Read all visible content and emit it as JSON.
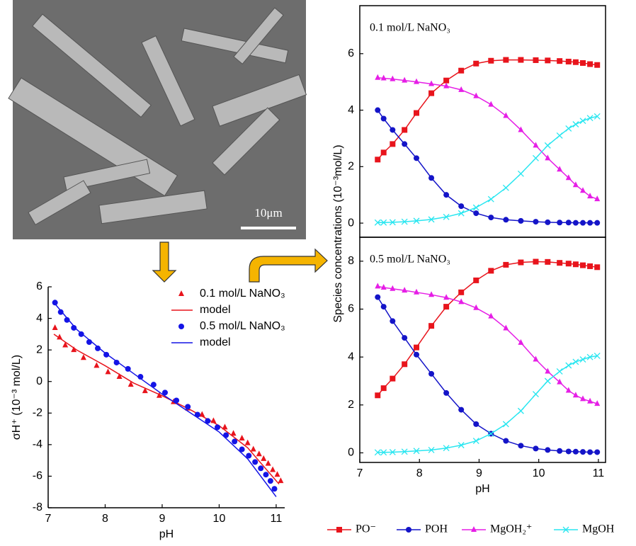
{
  "image": {
    "scale_label": "10μm"
  },
  "chart_data": [
    {
      "type": "scatter",
      "xlabel": "pH",
      "ylabel": "σH⁺ (10⁻³ mol/L)",
      "xlim": [
        7,
        11.15
      ],
      "ylim": [
        -8,
        6
      ],
      "xticks": [
        7,
        8,
        9,
        10,
        11
      ],
      "yticks": [
        -8,
        -6,
        -4,
        -2,
        0,
        2,
        4,
        6
      ],
      "legend": "upper right",
      "series": [
        {
          "name": "0.1 mol/L NaNO₃",
          "color": "#e8141c",
          "style": "markers",
          "marker": "triangle",
          "x": [
            7.12,
            7.2,
            7.3,
            7.45,
            7.62,
            7.85,
            8.05,
            8.25,
            8.45,
            8.7,
            8.95,
            9.2,
            9.45,
            9.7,
            9.9,
            10.1,
            10.25,
            10.4,
            10.5,
            10.6,
            10.7,
            10.78,
            10.86,
            10.94,
            11.02,
            11.08
          ],
          "values": [
            3.4,
            2.8,
            2.3,
            2.0,
            1.5,
            1.0,
            0.6,
            0.3,
            -0.2,
            -0.6,
            -0.9,
            -1.3,
            -1.7,
            -2.1,
            -2.5,
            -2.9,
            -3.3,
            -3.6,
            -3.9,
            -4.3,
            -4.6,
            -4.9,
            -5.2,
            -5.6,
            -5.9,
            -6.3
          ]
        },
        {
          "name": "model",
          "color": "#e8141c",
          "style": "line",
          "x": [
            7.1,
            7.5,
            8,
            8.5,
            9,
            9.5,
            10,
            10.5,
            11.05
          ],
          "values": [
            3.0,
            2.0,
            1.0,
            -0.1,
            -0.9,
            -1.8,
            -2.8,
            -4.2,
            -6.5
          ]
        },
        {
          "name": "0.5 mol/L NaNO₃",
          "color": "#1414e6",
          "style": "markers",
          "marker": "circle",
          "x": [
            7.12,
            7.22,
            7.33,
            7.45,
            7.58,
            7.72,
            7.87,
            8.02,
            8.2,
            8.4,
            8.62,
            8.85,
            9.05,
            9.25,
            9.45,
            9.62,
            9.8,
            9.97,
            10.12,
            10.27,
            10.4,
            10.52,
            10.63,
            10.73,
            10.82,
            10.9,
            10.97
          ],
          "values": [
            5.0,
            4.4,
            3.9,
            3.4,
            3.0,
            2.5,
            2.1,
            1.7,
            1.2,
            0.8,
            0.3,
            -0.2,
            -0.7,
            -1.2,
            -1.6,
            -2.1,
            -2.5,
            -2.9,
            -3.4,
            -3.8,
            -4.3,
            -4.7,
            -5.1,
            -5.5,
            -5.9,
            -6.3,
            -6.8
          ]
        },
        {
          "name": "model",
          "color": "#1414e6",
          "style": "line",
          "x": [
            7.1,
            7.5,
            8,
            8.5,
            9,
            9.5,
            10,
            10.5,
            11.0
          ],
          "values": [
            5.0,
            3.3,
            1.8,
            0.5,
            -0.8,
            -2.0,
            -3.2,
            -4.9,
            -7.3
          ]
        }
      ]
    },
    {
      "type": "line",
      "annotation": "0.1 mol/L NaNO₃",
      "ylabel": "Species concentrations (10⁻³mol/L)",
      "xlim": [
        7,
        11.12
      ],
      "ylim": [
        -0.5,
        7.7
      ],
      "yticks": [
        0,
        2,
        4,
        6
      ],
      "legend": "below",
      "x": [
        7.3,
        7.4,
        7.55,
        7.75,
        7.95,
        8.2,
        8.45,
        8.7,
        8.95,
        9.2,
        9.45,
        9.7,
        9.95,
        10.15,
        10.35,
        10.5,
        10.62,
        10.74,
        10.86,
        10.98
      ],
      "series": [
        {
          "name": "PO⁻",
          "color": "#e8141c",
          "marker": "square",
          "values": [
            2.25,
            2.5,
            2.8,
            3.3,
            3.9,
            4.6,
            5.05,
            5.4,
            5.65,
            5.75,
            5.78,
            5.78,
            5.77,
            5.76,
            5.74,
            5.72,
            5.7,
            5.67,
            5.63,
            5.6
          ]
        },
        {
          "name": "POH",
          "color": "#1414c8",
          "marker": "circle",
          "values": [
            4.0,
            3.7,
            3.3,
            2.8,
            2.3,
            1.6,
            1.0,
            0.6,
            0.35,
            0.2,
            0.12,
            0.08,
            0.05,
            0.03,
            0.02,
            0.02,
            0.01,
            0.01,
            0.01,
            0.01
          ]
        },
        {
          "name": "MgOH₂⁺",
          "color": "#e61ee6",
          "marker": "triangle",
          "values": [
            5.15,
            5.13,
            5.1,
            5.05,
            5.0,
            4.93,
            4.85,
            4.72,
            4.5,
            4.2,
            3.8,
            3.3,
            2.75,
            2.3,
            1.9,
            1.6,
            1.35,
            1.15,
            0.95,
            0.85
          ]
        },
        {
          "name": "MgOH",
          "color": "#28e6f0",
          "marker": "x",
          "values": [
            0.02,
            0.02,
            0.03,
            0.05,
            0.08,
            0.13,
            0.22,
            0.35,
            0.55,
            0.85,
            1.25,
            1.75,
            2.3,
            2.75,
            3.1,
            3.35,
            3.5,
            3.62,
            3.72,
            3.78
          ]
        }
      ]
    },
    {
      "type": "line",
      "annotation": "0.5 mol/L NaNO₃",
      "xlabel": "pH",
      "xlim": [
        7,
        11.12
      ],
      "ylim": [
        -0.4,
        9
      ],
      "xticks": [
        7,
        8,
        9,
        10,
        11
      ],
      "yticks": [
        0,
        2,
        4,
        6,
        8
      ],
      "x": [
        7.3,
        7.4,
        7.55,
        7.75,
        7.95,
        8.2,
        8.45,
        8.7,
        8.95,
        9.2,
        9.45,
        9.7,
        9.95,
        10.15,
        10.35,
        10.5,
        10.62,
        10.74,
        10.86,
        10.98
      ],
      "series": [
        {
          "color": "#e8141c",
          "marker": "square",
          "values": [
            2.4,
            2.7,
            3.1,
            3.7,
            4.4,
            5.3,
            6.1,
            6.7,
            7.2,
            7.6,
            7.85,
            7.95,
            7.98,
            7.97,
            7.93,
            7.9,
            7.87,
            7.83,
            7.79,
            7.75
          ]
        },
        {
          "color": "#1414c8",
          "marker": "circle",
          "values": [
            6.5,
            6.1,
            5.5,
            4.8,
            4.1,
            3.3,
            2.5,
            1.8,
            1.2,
            0.8,
            0.5,
            0.3,
            0.18,
            0.12,
            0.08,
            0.06,
            0.05,
            0.04,
            0.03,
            0.03
          ]
        },
        {
          "color": "#e61ee6",
          "marker": "triangle",
          "values": [
            6.95,
            6.9,
            6.85,
            6.78,
            6.7,
            6.6,
            6.48,
            6.3,
            6.05,
            5.7,
            5.2,
            4.6,
            3.9,
            3.4,
            2.95,
            2.6,
            2.4,
            2.25,
            2.15,
            2.05
          ]
        },
        {
          "color": "#28e6f0",
          "marker": "x",
          "values": [
            0.02,
            0.02,
            0.03,
            0.05,
            0.08,
            0.12,
            0.2,
            0.32,
            0.5,
            0.8,
            1.2,
            1.75,
            2.45,
            3.0,
            3.4,
            3.65,
            3.8,
            3.9,
            4.0,
            4.05
          ]
        }
      ]
    }
  ]
}
